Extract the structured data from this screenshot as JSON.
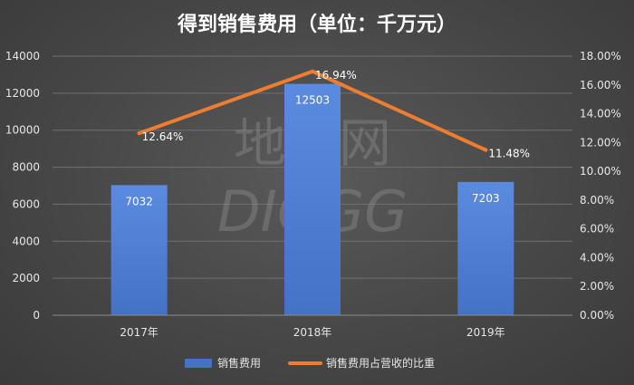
{
  "chart_data": {
    "type": "bar",
    "title": "得到销售费用（单位：千万元）",
    "categories": [
      "2017年",
      "2018年",
      "2019年"
    ],
    "series": [
      {
        "name": "销售费用",
        "type": "bar",
        "axis": "left",
        "values": [
          7032,
          12503,
          7203
        ],
        "labels": [
          "7032",
          "12503",
          "7203"
        ],
        "color": "#4472c4"
      },
      {
        "name": "销售费用占营收的比重",
        "type": "line",
        "axis": "right",
        "values": [
          12.64,
          16.94,
          11.48
        ],
        "labels": [
          "12.64%",
          "16.94%",
          "11.48%"
        ],
        "color": "#ed7d31"
      }
    ],
    "ylim_left": [
      0,
      14000
    ],
    "yticks_left": [
      "0",
      "2000",
      "4000",
      "6000",
      "8000",
      "10000",
      "12000",
      "14000"
    ],
    "ylim_right": [
      0,
      18
    ],
    "yticks_right": [
      "0.00%",
      "2.00%",
      "4.00%",
      "6.00%",
      "8.00%",
      "10.00%",
      "12.00%",
      "14.00%",
      "16.00%",
      "18.00%"
    ],
    "grid": true,
    "legend": "bottom"
  },
  "watermark": {
    "line1": "地歌网",
    "line2": "DIGGG"
  }
}
